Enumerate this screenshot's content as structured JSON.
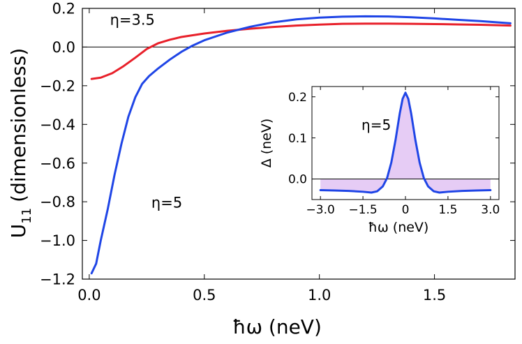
{
  "chart_data": [
    {
      "type": "line",
      "title": "",
      "xlabel": "ħω (neV)",
      "ylabel": "U",
      "ylabel_sub": "11",
      "ylabel_rest": "(dimensionless)",
      "xlim": [
        -0.03,
        1.85
      ],
      "ylim": [
        -1.2,
        0.2
      ],
      "xticks": [
        0.0,
        0.5,
        1.0,
        1.5
      ],
      "xtick_labels": [
        "0.0",
        "0.5",
        "1.0",
        "1.5"
      ],
      "yticks": [
        0.2,
        0.0,
        -0.2,
        -0.4,
        -0.6,
        -0.8,
        -1.0,
        -1.2
      ],
      "ytick_labels": [
        "0.2",
        "0.0",
        "−0.2",
        "−0.4",
        "−0.6",
        "−0.8",
        "−1.0",
        "−1.2"
      ],
      "hline": 0.0,
      "series": [
        {
          "name": "η=3.5",
          "color": "#e8202a",
          "x": [
            0.01,
            0.05,
            0.1,
            0.15,
            0.2,
            0.25,
            0.3,
            0.35,
            0.4,
            0.5,
            0.6,
            0.7,
            0.8,
            0.9,
            1.0,
            1.1,
            1.2,
            1.3,
            1.4,
            1.5,
            1.6,
            1.7,
            1.83
          ],
          "y": [
            -0.165,
            -0.158,
            -0.135,
            -0.098,
            -0.055,
            -0.01,
            0.02,
            0.038,
            0.052,
            0.07,
            0.084,
            0.095,
            0.104,
            0.111,
            0.116,
            0.12,
            0.121,
            0.121,
            0.12,
            0.119,
            0.117,
            0.115,
            0.111
          ]
        },
        {
          "name": "η=5",
          "color": "#1f45e6",
          "x": [
            0.01,
            0.03,
            0.05,
            0.08,
            0.11,
            0.14,
            0.17,
            0.2,
            0.23,
            0.26,
            0.3,
            0.35,
            0.4,
            0.45,
            0.5,
            0.6,
            0.7,
            0.8,
            0.9,
            1.0,
            1.1,
            1.2,
            1.3,
            1.4,
            1.5,
            1.6,
            1.7,
            1.83
          ],
          "y": [
            -1.17,
            -1.12,
            -1.0,
            -0.84,
            -0.66,
            -0.5,
            -0.36,
            -0.26,
            -0.19,
            -0.15,
            -0.11,
            -0.065,
            -0.025,
            0.008,
            0.035,
            0.075,
            0.105,
            0.128,
            0.143,
            0.152,
            0.157,
            0.159,
            0.158,
            0.154,
            0.148,
            0.141,
            0.134,
            0.123
          ]
        }
      ],
      "annotations": [
        {
          "text": "η=3.5",
          "x": 0.09,
          "y": 0.115
        },
        {
          "text": "η=5",
          "x": 0.27,
          "y": -0.83
        }
      ]
    },
    {
      "type": "area",
      "title": "",
      "xlabel": "ħω (neV)",
      "ylabel": "Δ (neV)",
      "xlim": [
        -3.3,
        3.3
      ],
      "ylim": [
        -0.05,
        0.225
      ],
      "xticks": [
        -3.0,
        -1.5,
        0.0,
        1.5,
        3.0
      ],
      "xtick_labels": [
        "−3.0",
        "−1.5",
        "0",
        "1.5",
        "3.0"
      ],
      "yticks": [
        0.0,
        0.1,
        0.2
      ],
      "ytick_labels": [
        "0.0",
        "0.1",
        "0.2"
      ],
      "hline": 0.0,
      "fill_color": "#e6ccf5",
      "series": [
        {
          "name": "η=5",
          "color": "#1f45e6",
          "x": [
            -3.0,
            -2.5,
            -2.0,
            -1.5,
            -1.2,
            -1.0,
            -0.8,
            -0.65,
            -0.5,
            -0.35,
            -0.2,
            -0.1,
            0.0,
            0.1,
            0.2,
            0.35,
            0.5,
            0.65,
            0.8,
            1.0,
            1.2,
            1.5,
            2.0,
            2.5,
            3.0
          ],
          "y": [
            -0.027,
            -0.028,
            -0.029,
            -0.031,
            -0.033,
            -0.03,
            -0.018,
            0.002,
            0.04,
            0.095,
            0.16,
            0.195,
            0.21,
            0.195,
            0.16,
            0.095,
            0.04,
            0.002,
            -0.018,
            -0.03,
            -0.033,
            -0.031,
            -0.029,
            -0.028,
            -0.027
          ]
        }
      ],
      "annotations": [
        {
          "text": "η=5",
          "x": -1.55,
          "y": 0.12
        }
      ]
    }
  ]
}
